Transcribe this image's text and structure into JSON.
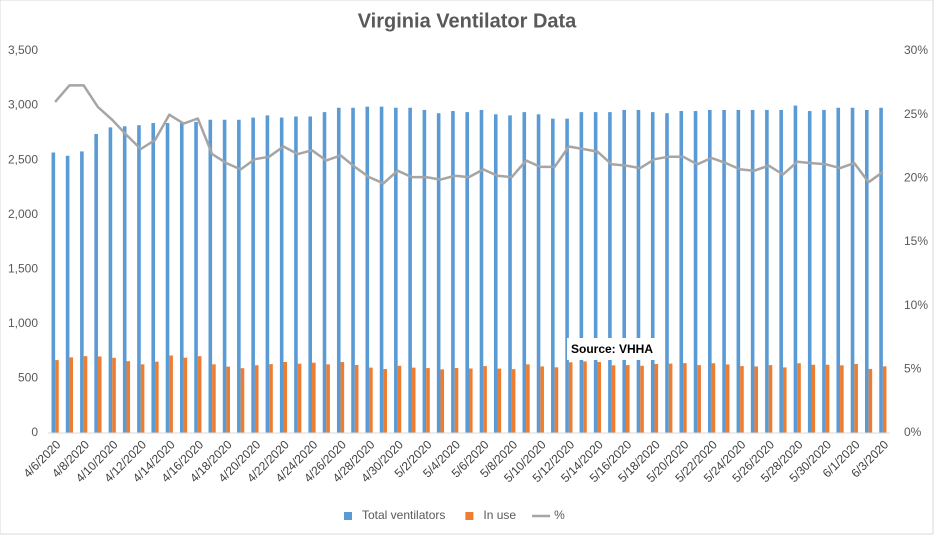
{
  "chart_data": {
    "type": "bar-line",
    "title": "Virginia Ventilator Data",
    "annotation": "Source: VHHA",
    "categories": [
      "4/6/2020",
      null,
      "4/8/2020",
      null,
      "4/10/2020",
      null,
      "4/12/2020",
      null,
      "4/14/2020",
      null,
      "4/16/2020",
      null,
      "4/18/2020",
      null,
      "4/20/2020",
      null,
      "4/22/2020",
      null,
      "4/24/2020",
      null,
      "4/26/2020",
      null,
      "4/28/2020",
      null,
      "4/30/2020",
      null,
      "5/2/2020",
      null,
      "5/4/2020",
      null,
      "5/6/2020",
      null,
      "5/8/2020",
      null,
      "5/10/2020",
      null,
      "5/12/2020",
      null,
      "5/14/2020",
      null,
      "5/16/2020",
      null,
      "5/18/2020",
      null,
      "5/20/2020",
      null,
      "5/22/2020",
      null,
      "5/24/2020",
      null,
      "5/26/2020",
      null,
      "5/28/2020",
      null,
      "5/30/2020",
      null,
      "6/1/2020",
      null,
      "6/3/2020"
    ],
    "series": [
      {
        "name": "Total ventilators",
        "color": "#5b9bd5",
        "kind": "bar",
        "values": [
          2570,
          2540,
          2580,
          2740,
          2800,
          2810,
          2820,
          2840,
          2840,
          2840,
          2850,
          2870,
          2870,
          2870,
          2890,
          2910,
          2890,
          2900,
          2900,
          2940,
          2980,
          2980,
          2990,
          2990,
          2980,
          2980,
          2960,
          2930,
          2950,
          2940,
          2960,
          2920,
          2910,
          2940,
          2920,
          2880,
          2880,
          2940,
          2940,
          2940,
          2960,
          2960,
          2940,
          2930,
          2950,
          2950,
          2960,
          2960,
          2960,
          2960,
          2960,
          2960,
          3000,
          2950,
          2960,
          2980,
          2980,
          2960,
          2980
        ]
      },
      {
        "name": "In use",
        "color": "#ed7d31",
        "kind": "bar",
        "values": [
          668,
          693,
          704,
          701,
          689,
          658,
          629,
          653,
          710,
          690,
          704,
          629,
          608,
          594,
          621,
          631,
          650,
          635,
          644,
          629,
          650,
          623,
          599,
          586,
          616,
          599,
          595,
          583,
          596,
          591,
          613,
          590,
          585,
          629,
          610,
          602,
          648,
          656,
          650,
          620,
          622,
          616,
          632,
          636,
          640,
          622,
          639,
          628,
          613,
          610,
          622,
          601,
          639,
          625,
          625,
          620,
          632,
          587,
          611
        ]
      },
      {
        "name": "%",
        "color": "#a5a5a5",
        "kind": "line",
        "axis": "y2",
        "values": [
          26,
          27.3,
          27.3,
          25.6,
          24.6,
          23.4,
          22.3,
          23.0,
          25.0,
          24.3,
          24.7,
          21.9,
          21.2,
          20.7,
          21.5,
          21.7,
          22.5,
          21.9,
          22.2,
          21.4,
          21.8,
          20.9,
          20.1,
          19.6,
          20.6,
          20.1,
          20.1,
          19.9,
          20.2,
          20.1,
          20.7,
          20.2,
          20.1,
          21.4,
          20.9,
          20.9,
          22.5,
          22.3,
          22.1,
          21.1,
          21.0,
          20.8,
          21.5,
          21.7,
          21.7,
          21.1,
          21.6,
          21.2,
          20.7,
          20.6,
          21.0,
          20.3,
          21.3,
          21.2,
          21.1,
          20.8,
          21.2,
          19.7,
          20.5
        ]
      }
    ],
    "ylim": [
      0,
      3500
    ],
    "yticks": [
      0,
      500,
      {
        "value": 1000,
        "label": "1,000"
      },
      {
        "value": 1500,
        "label": "1,500"
      },
      {
        "value": 2000,
        "label": "2,000"
      },
      {
        "value": 2500,
        "label": "2,500"
      },
      {
        "value": 3000,
        "label": "3,000"
      },
      {
        "value": 3500,
        "label": "3,500"
      }
    ],
    "y2lim": [
      0,
      30
    ],
    "y2ticks": [
      {
        "value": 0,
        "label": "0%"
      },
      {
        "value": 5,
        "label": "5%"
      },
      {
        "value": 10,
        "label": "10%"
      },
      {
        "value": 15,
        "label": "15%"
      },
      {
        "value": 20,
        "label": "20%"
      },
      {
        "value": 25,
        "label": "25%"
      },
      {
        "value": 30,
        "label": "30%"
      }
    ],
    "legend": "bottom"
  }
}
